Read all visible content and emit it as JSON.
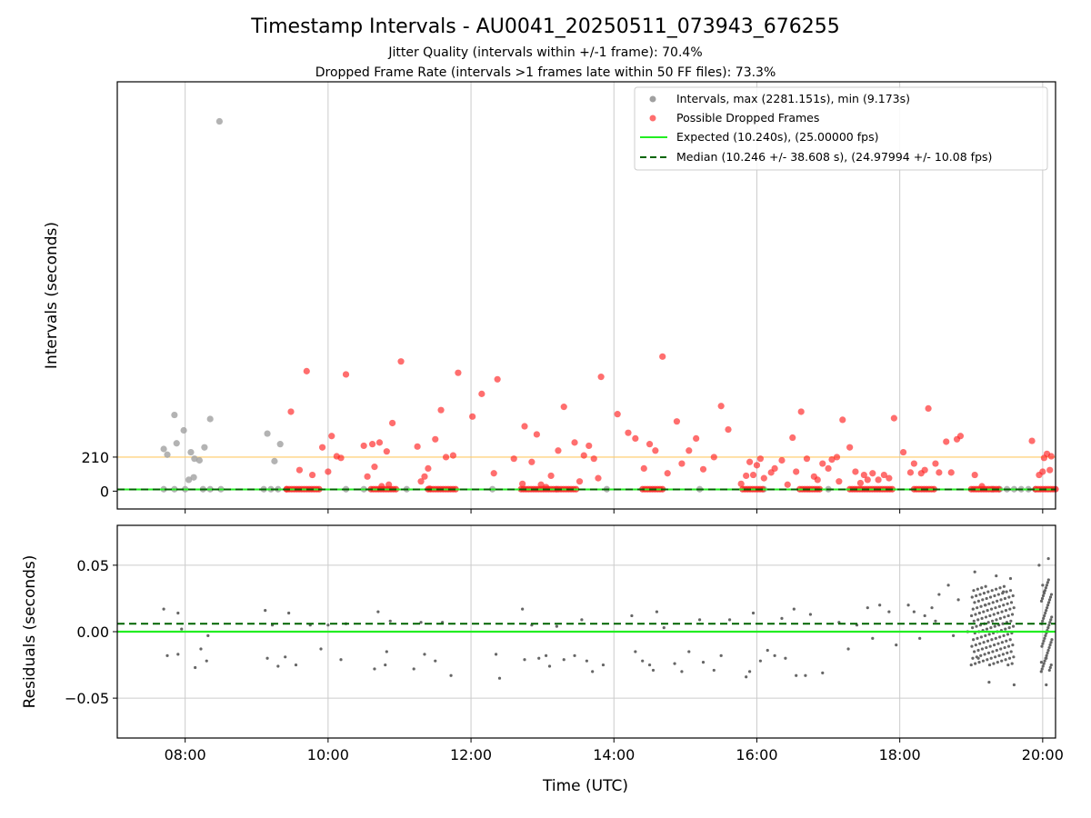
{
  "chart_data": {
    "type": "scatter",
    "title": "Timestamp Intervals - AU0041_20250511_073943_676255",
    "subtitle_lines": [
      "Jitter Quality (intervals within +/-1 frame): 70.4%",
      "Dropped Frame Rate (intervals >1 frames late within 50 FF files): 73.3%"
    ],
    "xlabel": "Time (UTC)",
    "x_ticks": [
      "08:00",
      "10:00",
      "12:00",
      "14:00",
      "16:00",
      "18:00",
      "20:00"
    ],
    "x_tick_hours": [
      8,
      10,
      12,
      14,
      16,
      18,
      20
    ],
    "xlim_hours": [
      7.05,
      20.18
    ],
    "grid": "vertical on top panel, both axes on bottom panel",
    "legend_placement": "upper right",
    "panels": {
      "intervals": {
        "ylabel": "Intervals (seconds)",
        "y_ticks": [
          0,
          210
        ],
        "ylim": [
          -110,
          2525
        ],
        "threshold_line": {
          "value": 210,
          "color": "#ffc966"
        },
        "expected_value": 10.24,
        "median_value": 10.246
      },
      "residuals": {
        "ylabel": "Residuals (seconds)",
        "y_ticks": [
          0.05,
          0.0,
          -0.05
        ],
        "y_tick_labels": [
          "0.05",
          "0.00",
          "−0.05"
        ],
        "ylim": [
          -0.08,
          0.08
        ],
        "expected_line": 0.0,
        "median_line": 0.006
      }
    },
    "series": [
      {
        "name": "Intervals, max (2281.151s), min (9.173s)",
        "kind": "scatter",
        "color": "#a0a0a0"
      },
      {
        "name": "Possible Dropped Frames",
        "kind": "scatter",
        "color": "#ff3030"
      },
      {
        "name": "Expected (10.240s), (25.00000 fps)",
        "kind": "line",
        "style": "solid",
        "color": "#22ee22"
      },
      {
        "name": "Median (10.246 +/- 38.608 s), (24.97994 +/- 10.08 fps)",
        "kind": "line",
        "style": "dashed",
        "color": "#006400"
      }
    ],
    "intervals_gray": [
      [
        7.7,
        260
      ],
      [
        7.75,
        225
      ],
      [
        7.85,
        470
      ],
      [
        7.88,
        295
      ],
      [
        7.98,
        375
      ],
      [
        8.08,
        240
      ],
      [
        8.13,
        200
      ],
      [
        8.2,
        190
      ],
      [
        8.27,
        270
      ],
      [
        8.35,
        445
      ],
      [
        8.05,
        70
      ],
      [
        8.12,
        85
      ],
      [
        8.48,
        2281
      ],
      [
        9.15,
        355
      ],
      [
        9.25,
        185
      ],
      [
        9.33,
        290
      ],
      [
        7.7,
        12
      ],
      [
        7.85,
        12
      ],
      [
        8.0,
        12
      ],
      [
        8.25,
        12
      ],
      [
        8.35,
        12
      ],
      [
        8.5,
        12
      ],
      [
        9.1,
        12
      ],
      [
        9.2,
        12
      ],
      [
        9.3,
        12
      ],
      [
        10.25,
        12
      ],
      [
        10.5,
        12
      ],
      [
        11.1,
        12
      ],
      [
        12.3,
        12
      ],
      [
        13.2,
        12
      ],
      [
        13.9,
        12
      ],
      [
        15.2,
        12
      ],
      [
        16.1,
        12
      ],
      [
        17.0,
        12
      ],
      [
        19.3,
        12
      ],
      [
        19.4,
        12
      ],
      [
        19.5,
        12
      ],
      [
        19.6,
        12
      ],
      [
        19.7,
        12
      ],
      [
        19.8,
        12
      ],
      [
        19.9,
        12
      ]
    ],
    "intervals_red": [
      [
        9.42,
        12
      ],
      [
        9.48,
        490
      ],
      [
        9.6,
        130
      ],
      [
        9.7,
        740
      ],
      [
        9.78,
        100
      ],
      [
        9.92,
        270
      ],
      [
        10.0,
        120
      ],
      [
        10.05,
        340
      ],
      [
        10.12,
        215
      ],
      [
        10.18,
        205
      ],
      [
        10.25,
        720
      ],
      [
        10.5,
        280
      ],
      [
        10.55,
        90
      ],
      [
        10.62,
        290
      ],
      [
        10.65,
        150
      ],
      [
        10.72,
        300
      ],
      [
        10.75,
        30
      ],
      [
        10.82,
        245
      ],
      [
        10.85,
        40
      ],
      [
        10.9,
        420
      ],
      [
        11.02,
        800
      ],
      [
        11.25,
        275
      ],
      [
        11.3,
        60
      ],
      [
        11.35,
        90
      ],
      [
        11.4,
        140
      ],
      [
        11.42,
        15
      ],
      [
        11.5,
        320
      ],
      [
        11.58,
        500
      ],
      [
        11.65,
        210
      ],
      [
        11.75,
        220
      ],
      [
        11.82,
        730
      ],
      [
        12.02,
        460
      ],
      [
        12.15,
        600
      ],
      [
        12.32,
        110
      ],
      [
        12.37,
        690
      ],
      [
        12.6,
        200
      ],
      [
        12.72,
        45
      ],
      [
        12.75,
        400
      ],
      [
        12.85,
        180
      ],
      [
        12.92,
        350
      ],
      [
        12.98,
        40
      ],
      [
        13.05,
        25
      ],
      [
        13.12,
        95
      ],
      [
        13.22,
        250
      ],
      [
        13.3,
        520
      ],
      [
        13.45,
        300
      ],
      [
        13.52,
        60
      ],
      [
        13.58,
        220
      ],
      [
        13.65,
        280
      ],
      [
        13.72,
        200
      ],
      [
        13.78,
        80
      ],
      [
        13.82,
        705
      ],
      [
        14.05,
        475
      ],
      [
        14.2,
        360
      ],
      [
        14.3,
        325
      ],
      [
        14.42,
        140
      ],
      [
        14.5,
        290
      ],
      [
        14.58,
        250
      ],
      [
        14.68,
        830
      ],
      [
        14.75,
        110
      ],
      [
        14.88,
        430
      ],
      [
        14.95,
        170
      ],
      [
        15.05,
        250
      ],
      [
        15.15,
        325
      ],
      [
        15.25,
        135
      ],
      [
        15.4,
        210
      ],
      [
        15.5,
        525
      ],
      [
        15.6,
        380
      ],
      [
        15.78,
        45
      ],
      [
        15.85,
        95
      ],
      [
        15.9,
        180
      ],
      [
        15.95,
        100
      ],
      [
        16.0,
        160
      ],
      [
        16.05,
        200
      ],
      [
        16.1,
        80
      ],
      [
        16.2,
        115
      ],
      [
        16.25,
        140
      ],
      [
        16.35,
        190
      ],
      [
        16.43,
        40
      ],
      [
        16.5,
        330
      ],
      [
        16.55,
        120
      ],
      [
        16.62,
        490
      ],
      [
        16.7,
        200
      ],
      [
        16.8,
        90
      ],
      [
        16.85,
        70
      ],
      [
        16.92,
        170
      ],
      [
        17.0,
        140
      ],
      [
        17.05,
        195
      ],
      [
        17.12,
        210
      ],
      [
        17.15,
        60
      ],
      [
        17.2,
        440
      ],
      [
        17.3,
        270
      ],
      [
        17.38,
        120
      ],
      [
        17.45,
        50
      ],
      [
        17.5,
        100
      ],
      [
        17.55,
        70
      ],
      [
        17.62,
        110
      ],
      [
        17.7,
        70
      ],
      [
        17.78,
        100
      ],
      [
        17.85,
        80
      ],
      [
        17.92,
        450
      ],
      [
        18.05,
        240
      ],
      [
        18.15,
        115
      ],
      [
        18.2,
        170
      ],
      [
        18.3,
        110
      ],
      [
        18.35,
        130
      ],
      [
        18.4,
        510
      ],
      [
        18.5,
        170
      ],
      [
        18.55,
        115
      ],
      [
        18.65,
        305
      ],
      [
        18.72,
        115
      ],
      [
        18.8,
        320
      ],
      [
        18.85,
        340
      ],
      [
        19.05,
        100
      ],
      [
        19.15,
        30
      ],
      [
        19.85,
        310
      ],
      [
        19.95,
        100
      ],
      [
        20.0,
        120
      ],
      [
        20.02,
        205
      ],
      [
        20.06,
        230
      ],
      [
        20.1,
        130
      ],
      [
        20.12,
        215
      ]
    ],
    "intervals_red_baseline_ranges": [
      [
        9.42,
        9.9
      ],
      [
        10.6,
        10.95
      ],
      [
        11.4,
        11.8
      ],
      [
        12.7,
        13.5
      ],
      [
        14.4,
        14.7
      ],
      [
        15.8,
        16.1
      ],
      [
        16.6,
        16.9
      ],
      [
        17.3,
        17.9
      ],
      [
        18.2,
        18.5
      ],
      [
        19.0,
        19.4
      ],
      [
        19.9,
        20.18
      ]
    ],
    "residuals": [
      [
        7.7,
        0.017
      ],
      [
        7.75,
        -0.018
      ],
      [
        7.9,
        -0.017
      ],
      [
        7.9,
        0.014
      ],
      [
        7.95,
        0.002
      ],
      [
        8.14,
        -0.027
      ],
      [
        8.22,
        -0.013
      ],
      [
        8.3,
        -0.022
      ],
      [
        8.32,
        -0.003
      ],
      [
        9.12,
        0.016
      ],
      [
        9.15,
        -0.02
      ],
      [
        9.22,
        0.005
      ],
      [
        9.3,
        -0.026
      ],
      [
        9.4,
        -0.019
      ],
      [
        9.45,
        0.014
      ],
      [
        9.55,
        -0.025
      ],
      [
        9.75,
        0.005
      ],
      [
        9.9,
        -0.013
      ],
      [
        10.0,
        0.005
      ],
      [
        10.18,
        -0.021
      ],
      [
        10.25,
        0.006
      ],
      [
        10.65,
        -0.028
      ],
      [
        10.7,
        0.015
      ],
      [
        10.8,
        -0.025
      ],
      [
        10.82,
        -0.015
      ],
      [
        10.87,
        0.008
      ],
      [
        11.2,
        -0.028
      ],
      [
        11.3,
        0.007
      ],
      [
        11.35,
        -0.017
      ],
      [
        11.5,
        -0.022
      ],
      [
        11.6,
        0.007
      ],
      [
        11.72,
        -0.033
      ],
      [
        12.4,
        -0.035
      ],
      [
        12.35,
        -0.017
      ],
      [
        12.72,
        0.017
      ],
      [
        12.75,
        -0.021
      ],
      [
        12.85,
        0.005
      ],
      [
        12.95,
        -0.02
      ],
      [
        13.05,
        -0.018
      ],
      [
        13.1,
        -0.026
      ],
      [
        13.2,
        0.004
      ],
      [
        13.3,
        -0.021
      ],
      [
        13.45,
        -0.018
      ],
      [
        13.55,
        0.009
      ],
      [
        13.62,
        -0.022
      ],
      [
        13.7,
        -0.03
      ],
      [
        13.85,
        -0.025
      ],
      [
        14.25,
        0.012
      ],
      [
        14.3,
        -0.015
      ],
      [
        14.4,
        -0.022
      ],
      [
        14.5,
        -0.025
      ],
      [
        14.55,
        -0.029
      ],
      [
        14.6,
        0.015
      ],
      [
        14.7,
        0.003
      ],
      [
        14.85,
        -0.024
      ],
      [
        14.95,
        -0.03
      ],
      [
        15.05,
        -0.015
      ],
      [
        15.2,
        0.009
      ],
      [
        15.25,
        -0.023
      ],
      [
        15.4,
        -0.029
      ],
      [
        15.5,
        -0.018
      ],
      [
        15.62,
        0.009
      ],
      [
        15.85,
        -0.034
      ],
      [
        15.9,
        -0.03
      ],
      [
        15.95,
        0.014
      ],
      [
        16.05,
        -0.022
      ],
      [
        16.15,
        -0.014
      ],
      [
        16.25,
        -0.018
      ],
      [
        16.35,
        0.01
      ],
      [
        16.4,
        -0.02
      ],
      [
        16.52,
        0.017
      ],
      [
        16.55,
        -0.033
      ],
      [
        16.68,
        -0.033
      ],
      [
        16.75,
        0.013
      ],
      [
        16.92,
        -0.031
      ],
      [
        17.15,
        0.007
      ],
      [
        17.28,
        -0.013
      ],
      [
        17.4,
        0.005
      ],
      [
        17.55,
        0.018
      ],
      [
        17.62,
        -0.005
      ],
      [
        17.72,
        0.02
      ],
      [
        17.85,
        0.015
      ],
      [
        17.95,
        -0.01
      ],
      [
        18.12,
        0.02
      ],
      [
        18.2,
        0.015
      ],
      [
        18.28,
        -0.005
      ],
      [
        18.35,
        0.012
      ],
      [
        18.45,
        0.018
      ],
      [
        18.5,
        0.008
      ],
      [
        18.55,
        0.028
      ],
      [
        18.68,
        0.035
      ],
      [
        18.75,
        -0.003
      ],
      [
        18.82,
        0.024
      ],
      [
        18.95,
        0.0
      ],
      [
        19.05,
        0.045
      ],
      [
        19.1,
        -0.02
      ],
      [
        19.2,
        0.02
      ],
      [
        19.25,
        -0.038
      ],
      [
        19.35,
        0.042
      ],
      [
        19.45,
        0.03
      ],
      [
        19.55,
        0.04
      ],
      [
        19.6,
        -0.04
      ],
      [
        19.95,
        0.05
      ],
      [
        20.0,
        0.035
      ],
      [
        20.05,
        -0.02
      ],
      [
        20.05,
        -0.04
      ],
      [
        20.02,
        0.03
      ],
      [
        20.08,
        0.055
      ]
    ]
  }
}
